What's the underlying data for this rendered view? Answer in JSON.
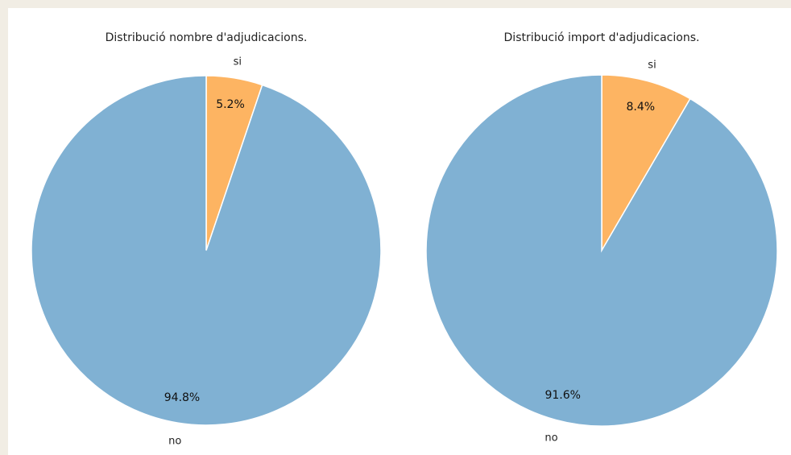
{
  "chart_data": [
    {
      "type": "pie",
      "title": "Distribució nombre d'adjudicacions.",
      "categories": [
        "si",
        "no"
      ],
      "values": [
        5.2,
        94.8
      ],
      "value_labels": [
        "5.2%",
        "94.8%"
      ],
      "colors": [
        "#fdb462",
        "#80b1d3"
      ],
      "start": "top",
      "direction": "clockwise",
      "legend": "none"
    },
    {
      "type": "pie",
      "title": "Distribució import d'adjudicacions.",
      "categories": [
        "si",
        "no"
      ],
      "values": [
        8.4,
        91.6
      ],
      "value_labels": [
        "8.4%",
        "91.6%"
      ],
      "colors": [
        "#fdb462",
        "#80b1d3"
      ],
      "start": "top",
      "direction": "clockwise",
      "legend": "none"
    }
  ]
}
